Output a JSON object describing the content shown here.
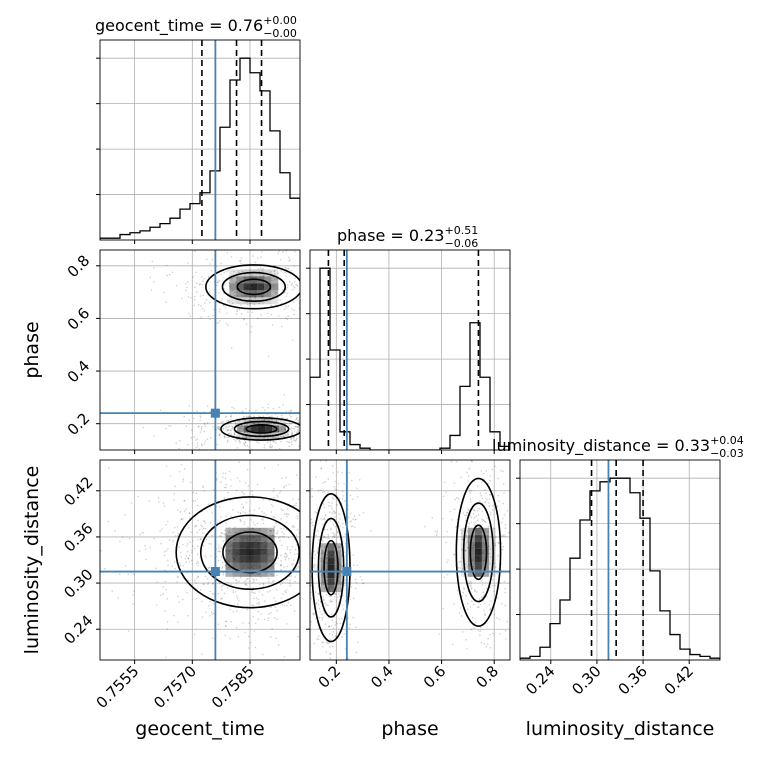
{
  "chart_data": {
    "type": "corner",
    "parameters": [
      "geocent_time",
      "phase",
      "luminosity_distance"
    ],
    "truths": {
      "geocent_time": 0.7576,
      "phase": 0.24,
      "luminosity_distance": 0.315
    },
    "axis_ranges": {
      "geocent_time": [
        0.7546,
        0.7598
      ],
      "phase": [
        0.1,
        0.86
      ],
      "luminosity_distance": [
        0.2,
        0.46
      ]
    },
    "ticks": {
      "geocent_time": [
        "0.7555",
        "0.7570",
        "0.7585"
      ],
      "phase": [
        "0.2",
        "0.4",
        "0.6",
        "0.8"
      ],
      "luminosity_distance": [
        "0.24",
        "0.30",
        "0.36",
        "0.42"
      ]
    },
    "grid": true,
    "diagonal_titles": [
      {
        "param": "geocent_time",
        "name": "geocent_time",
        "median": "0.76",
        "plus": "+0.00",
        "minus": "−0.00"
      },
      {
        "param": "phase",
        "name": "phase",
        "median": "0.23",
        "plus": "+0.51",
        "minus": "−0.06"
      },
      {
        "param": "luminosity_distance",
        "name": "luminosity_distance",
        "median": "0.33",
        "plus": "+0.04",
        "minus": "−0.03"
      }
    ],
    "quantiles": {
      "geocent_time": [
        0.75725,
        0.75815,
        0.7588
      ],
      "phase": [
        0.17,
        0.23,
        0.74
      ],
      "luminosity_distance": [
        0.293,
        0.325,
        0.36
      ]
    },
    "histograms": {
      "geocent_time": {
        "edges": [
          0.7546,
          0.75486,
          0.75512,
          0.75538,
          0.75564,
          0.7559,
          0.75616,
          0.75642,
          0.75668,
          0.75694,
          0.7572,
          0.75746,
          0.75772,
          0.75798,
          0.75824,
          0.7585,
          0.75876,
          0.75902,
          0.75928,
          0.75954,
          0.7598
        ],
        "counts": [
          1,
          1,
          3,
          4,
          5,
          7,
          9,
          12,
          17,
          20,
          26,
          38,
          62,
          88,
          100,
          92,
          82,
          60,
          37,
          23
        ]
      },
      "phase": {
        "edges": [
          0.1,
          0.138,
          0.176,
          0.214,
          0.252,
          0.29,
          0.328,
          0.366,
          0.404,
          0.442,
          0.48,
          0.518,
          0.556,
          0.594,
          0.632,
          0.67,
          0.708,
          0.746,
          0.784,
          0.822,
          0.86
        ],
        "counts": [
          40,
          100,
          55,
          10,
          3,
          1,
          0,
          0,
          0,
          0,
          0,
          0,
          0,
          1,
          8,
          35,
          70,
          40,
          10,
          2
        ]
      },
      "luminosity_distance": {
        "edges": [
          0.2,
          0.213,
          0.226,
          0.239,
          0.252,
          0.265,
          0.278,
          0.291,
          0.304,
          0.317,
          0.33,
          0.343,
          0.356,
          0.369,
          0.382,
          0.395,
          0.408,
          0.421,
          0.434,
          0.447,
          0.46
        ],
        "counts": [
          1,
          2,
          7,
          20,
          33,
          56,
          77,
          93,
          98,
          100,
          100,
          92,
          78,
          49,
          27,
          14,
          6,
          3,
          2,
          1
        ]
      }
    },
    "series": [
      {
        "params": [
          "geocent_time",
          "phase"
        ],
        "modes": [
          {
            "center": [
              0.7588,
              0.18
            ],
            "spread": [
              0.00055,
              0.022
            ],
            "weight": 0.6,
            "contours": [
              1.2,
              0.8,
              0.45
            ]
          },
          {
            "center": [
              0.7586,
              0.72
            ],
            "spread": [
              0.0006,
              0.04
            ],
            "weight": 0.4,
            "contours": [
              1.3,
              0.85,
              0.45
            ]
          }
        ]
      },
      {
        "params": [
          "geocent_time",
          "luminosity_distance"
        ],
        "modes": [
          {
            "center": [
              0.7585,
              0.34
            ],
            "spread": [
              0.0008,
              0.03
            ],
            "weight": 1.0,
            "contours": [
              1.5,
              1.0,
              0.55
            ]
          }
        ]
      },
      {
        "params": [
          "phase",
          "luminosity_distance"
        ],
        "modes": [
          {
            "center": [
              0.18,
              0.32
            ],
            "spread": [
              0.03,
              0.04
            ],
            "weight": 0.55,
            "contours": [
              1.5,
              1.0,
              0.55
            ]
          },
          {
            "center": [
              0.74,
              0.34
            ],
            "spread": [
              0.035,
              0.04
            ],
            "weight": 0.45,
            "contours": [
              1.5,
              1.0,
              0.55
            ]
          }
        ]
      }
    ]
  }
}
